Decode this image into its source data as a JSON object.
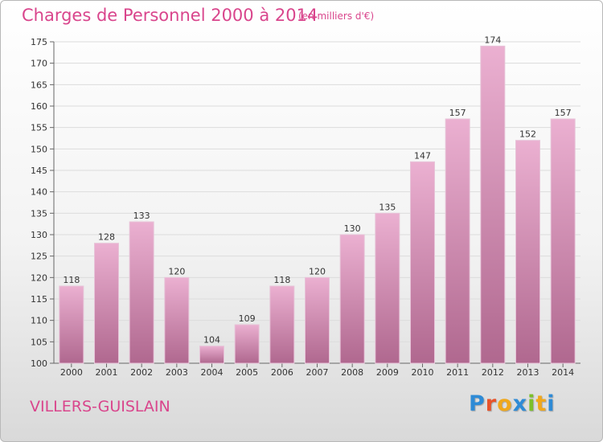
{
  "header": {
    "title": "Charges de Personnel 2000 à 2014",
    "subtitle": "(en milliers d'€)"
  },
  "footer": {
    "commune": "VILLERS-GUISLAIN",
    "logo_text": "Proxiti"
  },
  "colors": {
    "accent": "#d9458c",
    "bar_light": "#e8a9cc",
    "bar_dark": "#b0688f",
    "logo_letters": [
      "#2e8bd6",
      "#e8532a",
      "#f0a81c",
      "#2e8bd6",
      "#7cc02a",
      "#f0a81c",
      "#2e8bd6"
    ]
  },
  "chart_data": {
    "type": "bar",
    "title": "Charges de Personnel 2000 à 2014",
    "subtitle": "(en milliers d'€)",
    "categories": [
      "2000",
      "2001",
      "2002",
      "2003",
      "2004",
      "2005",
      "2006",
      "2007",
      "2008",
      "2009",
      "2010",
      "2011",
      "2012",
      "2013",
      "2014"
    ],
    "values": [
      118,
      128,
      133,
      120,
      104,
      109,
      118,
      120,
      130,
      135,
      147,
      157,
      174,
      152,
      157
    ],
    "ylim": [
      100,
      175
    ],
    "yticks": [
      100,
      105,
      110,
      115,
      120,
      125,
      130,
      135,
      140,
      145,
      150,
      155,
      160,
      165,
      170,
      175
    ],
    "grid": true,
    "data_labels": true
  }
}
